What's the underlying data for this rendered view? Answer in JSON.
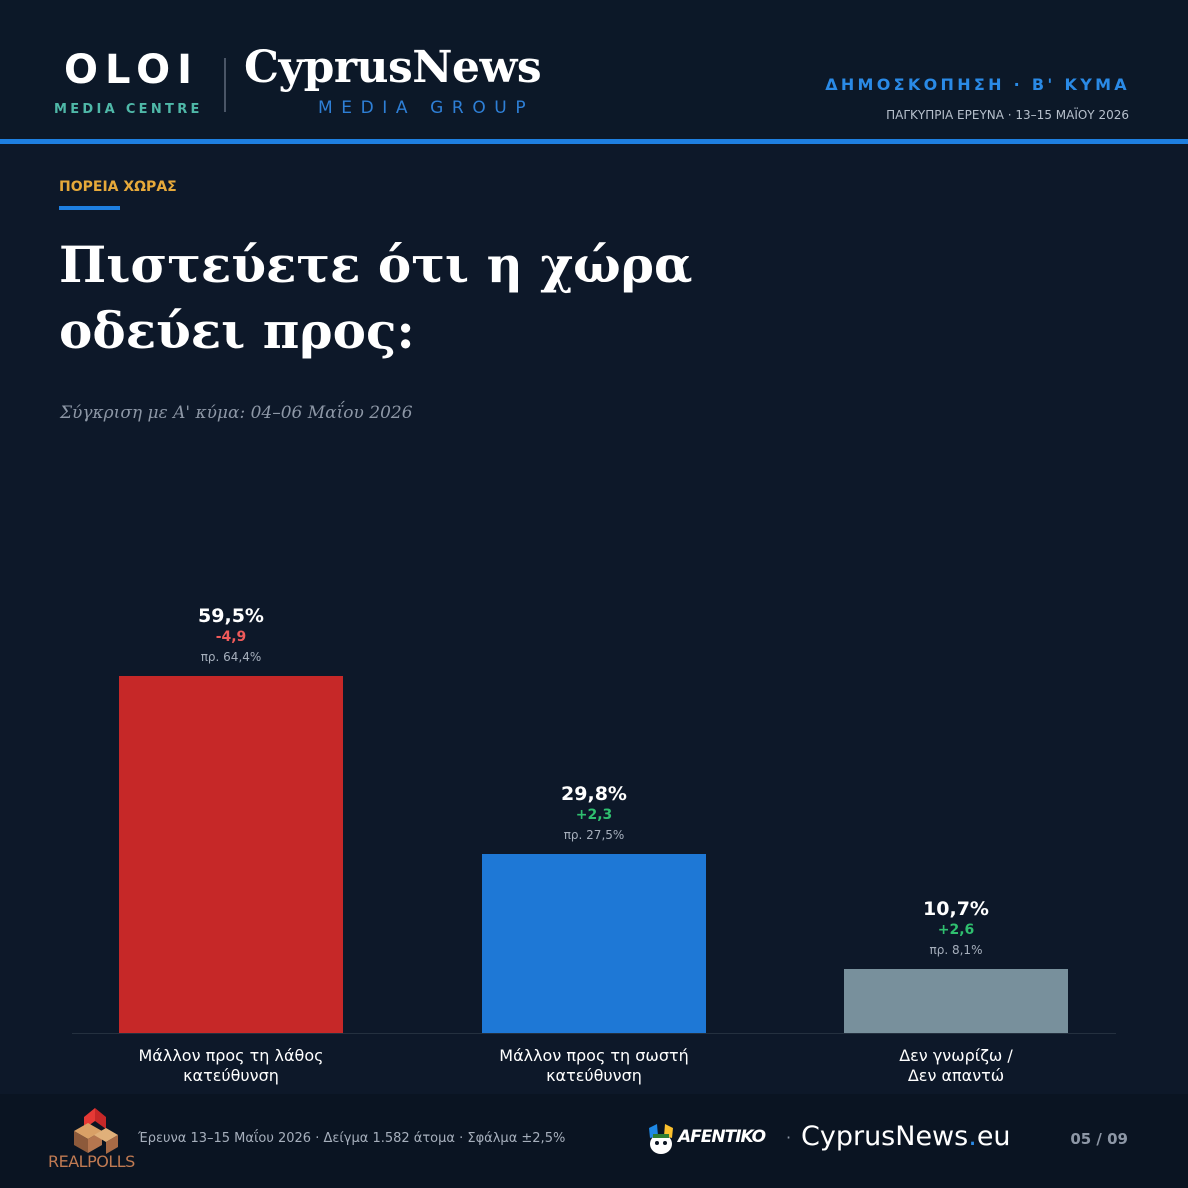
{
  "header": {
    "oloi_logo": "OLOI",
    "oloi_sub": "MEDIA CENTRE",
    "cyprusnews_logo": "CyprusNews",
    "cyprusnews_sub": "MEDIA GROUP",
    "survey_title": "ΔΗΜΟΣΚΟΠΗΣΗ · Β' ΚΥΜΑ",
    "survey_sub": "ΠΑΓΚΥΠΡΙΑ ΕΡΕΥΝΑ · 13–15 ΜΑΪΟΥ 2026"
  },
  "section_label": "ΠΟΡΕΙΑ ΧΩΡΑΣ",
  "question": "Πιστεύετε ότι η χώρα οδεύει προς:",
  "subtitle": "Σύγκριση με Α' κύμα: 04–06 Μαΐου 2026",
  "colors": {
    "background": "#0d1829",
    "accent": "#1e7fe0",
    "label_gold": "#e6a93a",
    "positive": "#2fbf6f",
    "negative": "#ef5a5a"
  },
  "chart_data": {
    "type": "bar",
    "categories": [
      "Μάλλον προς τη λάθος\nκατεύθυνση",
      "Μάλλον προς τη σωστή\nκατεύθυνση",
      "Δεν γνωρίζω /\nΔεν απαντώ"
    ],
    "values": [
      59.5,
      29.8,
      10.7
    ],
    "value_labels": [
      "59,5%",
      "29,8%",
      "10,7%"
    ],
    "deltas": [
      "-4,9",
      "+2,3",
      "+2,6"
    ],
    "previous_labels": [
      "πρ. 64,4%",
      "πρ. 27,5%",
      "πρ. 8,1%"
    ],
    "previous_values": [
      64.4,
      27.5,
      8.1
    ],
    "bar_colors": [
      "#c62828",
      "#1e78d6",
      "#78909c"
    ],
    "ylim": [
      0,
      100
    ],
    "grid": false,
    "legend": "none"
  },
  "footer": {
    "realpolls_logo": "REALPOLLS",
    "footnote": "Έρευνα 13–15 Μαΐου 2026  ·  Δείγμα 1.582 άτομα  ·  Σφάλμα ±2,5%",
    "afentiko_logo": "AFENTIKO",
    "separator": "·",
    "cyprusnews_domain_name": "CyprusNews",
    "cyprusnews_domain_dot": ".",
    "cyprusnews_domain_tld": "eu",
    "page": "05 / 09"
  }
}
